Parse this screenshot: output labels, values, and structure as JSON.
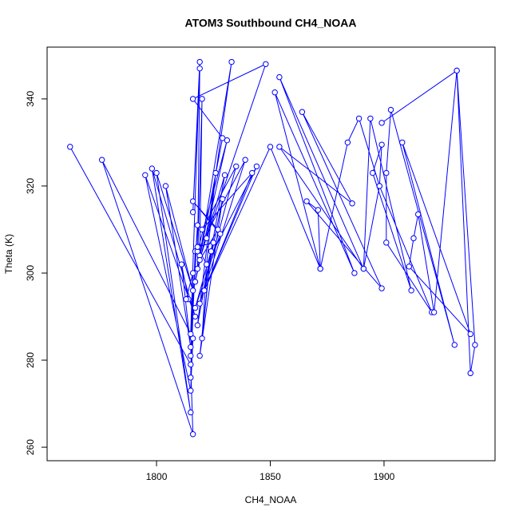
{
  "chart_data": {
    "type": "line",
    "title": "ATOM3 Southbound CH4_NOAA",
    "xlabel": "CH4_NOAA",
    "ylabel": "Theta (K)",
    "color": "#0000ff",
    "markers": true,
    "x": [
      1762,
      1815,
      1816,
      1776,
      1816,
      1815,
      1795,
      1817,
      1798,
      1815,
      1800,
      1816,
      1804,
      1815,
      1811,
      1814,
      1813,
      1816,
      1815,
      1817,
      1815,
      1818,
      1815,
      1819,
      1816,
      1819,
      1818,
      1820,
      1819,
      1833,
      1822,
      1848,
      1816,
      1829,
      1817,
      1831,
      1818,
      1839,
      1819,
      1835,
      1820,
      1842,
      1821,
      1844,
      1822,
      1826,
      1818,
      1830,
      1819,
      1827,
      1816,
      1828,
      1817,
      1825,
      1818,
      1822,
      1820,
      1824,
      1819,
      1829,
      1821,
      1850,
      1872,
      1852,
      1887,
      1854,
      1891,
      1854,
      1886,
      1864,
      1899,
      1866,
      1871,
      1872,
      1884,
      1889,
      1898,
      1891,
      1894,
      1912,
      1895,
      1899,
      1898,
      1921,
      1901,
      1901,
      1903,
      1931,
      1908,
      1938,
      1911,
      1913,
      1915,
      1922,
      1932,
      1938,
      1940,
      1932,
      1899
    ],
    "values": [
      329,
      279,
      263,
      326,
      285,
      273,
      322.5,
      290,
      324,
      268,
      323,
      296,
      320,
      283,
      302,
      294,
      294,
      300,
      276,
      305,
      281,
      311,
      286,
      348.5,
      314,
      347,
      301,
      340,
      304,
      348.5,
      308,
      348,
      340,
      331,
      298,
      330.5,
      305,
      326,
      293,
      324.5,
      310,
      323,
      296,
      324.5,
      302,
      323,
      288,
      322.5,
      303,
      310,
      316.5,
      309,
      292,
      307,
      306,
      302,
      285,
      305,
      281,
      317,
      296,
      329,
      301,
      341.5,
      300,
      345,
      301,
      329,
      316,
      337,
      296.5,
      316.5,
      314.5,
      301,
      330,
      335.5,
      320,
      301,
      335.5,
      296,
      323,
      329.5,
      320,
      291,
      307,
      323,
      337.5,
      283.5,
      330,
      286,
      301.5,
      308,
      313.5,
      291,
      346.5,
      277,
      283.5,
      346.5,
      334.5
    ],
    "xlim": [
      1751.9,
      1948.8
    ],
    "ylim": [
      256.9,
      351.9
    ],
    "xticks": [
      1800,
      1850,
      1900
    ],
    "yticks": [
      260,
      280,
      300,
      320,
      340
    ]
  }
}
